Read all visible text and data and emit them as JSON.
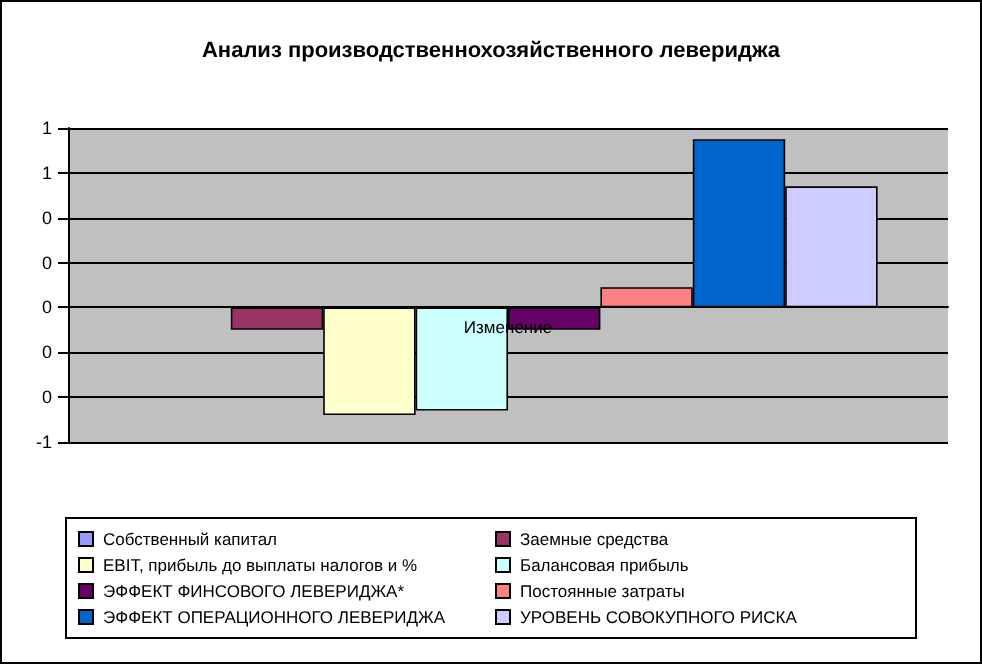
{
  "chart_data": {
    "type": "bar",
    "title": "Анализ производственнохозяйственного левериджа",
    "categories": [
      "Изменение"
    ],
    "series": [
      {
        "name": "Собственный капитал",
        "color": "#9999ff",
        "values": [
          0
        ]
      },
      {
        "name": "Заемные средства",
        "color": "#993366",
        "values": [
          -0.1
        ]
      },
      {
        "name": "EBIT, прибыль до выплаты налогов и %",
        "color": "#ffffcc",
        "values": [
          -0.48
        ]
      },
      {
        "name": "Балансовая прибыль",
        "color": "#ccffff",
        "values": [
          -0.46
        ]
      },
      {
        "name": "ЭФФЕКТ ФИНСОВОГО ЛЕВЕРИДЖА*",
        "color": "#660066",
        "values": [
          -0.1
        ]
      },
      {
        "name": "Постоянные затраты",
        "color": "#ff8080",
        "values": [
          0.09
        ]
      },
      {
        "name": "ЭФФЕКТ ОПЕРАЦИОННОГО ЛЕВЕРИДЖА",
        "color": "#0066cc",
        "values": [
          0.75
        ]
      },
      {
        "name": "УРОВЕНЬ СОВОКУПНОГО РИСКА",
        "color": "#ccccff",
        "values": [
          0.54
        ]
      }
    ],
    "ylim": [
      -0.6,
      0.8
    ],
    "yticks": [
      {
        "value": -0.6,
        "label": "-1"
      },
      {
        "value": -0.4,
        "label": "0"
      },
      {
        "value": -0.2,
        "label": "0"
      },
      {
        "value": 0,
        "label": "0"
      },
      {
        "value": 0.2,
        "label": "0"
      },
      {
        "value": 0.4,
        "label": "0"
      },
      {
        "value": 0.6,
        "label": "1"
      },
      {
        "value": 0.8,
        "label": "1"
      }
    ],
    "grid": "y",
    "legend": "bottom"
  }
}
